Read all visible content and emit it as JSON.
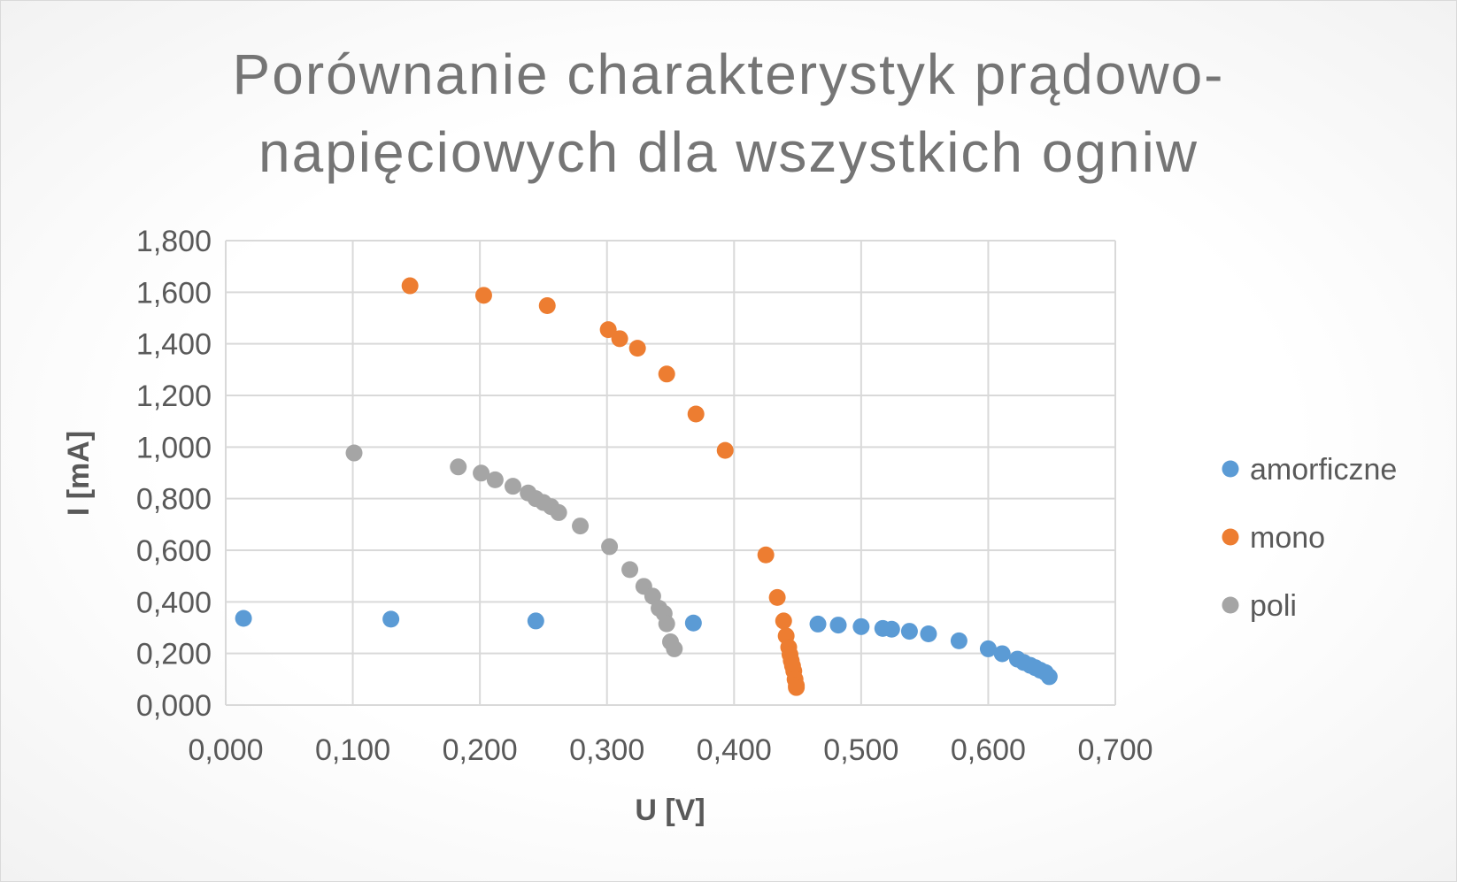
{
  "chart_data": {
    "type": "scatter",
    "title_lines": [
      "Porównanie charakterystyk prądowo-",
      "napięciowych dla wszystkich ogniw"
    ],
    "xlabel": "U [V]",
    "ylabel": "I [mA]",
    "xlim": [
      0,
      0.7
    ],
    "ylim": [
      0,
      1.8
    ],
    "x_ticks": [
      "0,000",
      "0,100",
      "0,200",
      "0,300",
      "0,400",
      "0,500",
      "0,600",
      "0,700"
    ],
    "y_ticks": [
      "0,000",
      "0,200",
      "0,400",
      "0,600",
      "0,800",
      "1,000",
      "1,200",
      "1,400",
      "1,600",
      "1,800"
    ],
    "grid": true,
    "legend_position": "right",
    "series": [
      {
        "name": "amorficzne",
        "color": "#5b9bd5",
        "points": [
          [
            0.014,
            0.336
          ],
          [
            0.13,
            0.333
          ],
          [
            0.244,
            0.326
          ],
          [
            0.368,
            0.318
          ],
          [
            0.466,
            0.314
          ],
          [
            0.482,
            0.31
          ],
          [
            0.5,
            0.304
          ],
          [
            0.517,
            0.297
          ],
          [
            0.524,
            0.294
          ],
          [
            0.538,
            0.286
          ],
          [
            0.553,
            0.276
          ],
          [
            0.577,
            0.249
          ],
          [
            0.6,
            0.218
          ],
          [
            0.611,
            0.199
          ],
          [
            0.623,
            0.178
          ],
          [
            0.628,
            0.165
          ],
          [
            0.633,
            0.154
          ],
          [
            0.637,
            0.145
          ],
          [
            0.641,
            0.135
          ],
          [
            0.645,
            0.126
          ],
          [
            0.648,
            0.11
          ]
        ]
      },
      {
        "name": "mono",
        "color": "#ed7d31",
        "points": [
          [
            0.145,
            1.625
          ],
          [
            0.203,
            1.588
          ],
          [
            0.253,
            1.548
          ],
          [
            0.301,
            1.455
          ],
          [
            0.31,
            1.42
          ],
          [
            0.324,
            1.383
          ],
          [
            0.347,
            1.283
          ],
          [
            0.37,
            1.128
          ],
          [
            0.393,
            0.987
          ],
          [
            0.425,
            0.582
          ],
          [
            0.434,
            0.417
          ],
          [
            0.439,
            0.326
          ],
          [
            0.441,
            0.268
          ],
          [
            0.443,
            0.224
          ],
          [
            0.444,
            0.196
          ],
          [
            0.445,
            0.172
          ],
          [
            0.446,
            0.152
          ],
          [
            0.447,
            0.132
          ],
          [
            0.448,
            0.1
          ],
          [
            0.449,
            0.076
          ],
          [
            0.449,
            0.068
          ]
        ]
      },
      {
        "name": "poli",
        "color": "#a5a5a5",
        "points": [
          [
            0.101,
            0.977
          ],
          [
            0.183,
            0.923
          ],
          [
            0.201,
            0.899
          ],
          [
            0.212,
            0.873
          ],
          [
            0.226,
            0.848
          ],
          [
            0.238,
            0.822
          ],
          [
            0.244,
            0.8
          ],
          [
            0.25,
            0.785
          ],
          [
            0.256,
            0.769
          ],
          [
            0.262,
            0.746
          ],
          [
            0.279,
            0.694
          ],
          [
            0.302,
            0.614
          ],
          [
            0.318,
            0.525
          ],
          [
            0.329,
            0.46
          ],
          [
            0.336,
            0.422
          ],
          [
            0.341,
            0.375
          ],
          [
            0.345,
            0.355
          ],
          [
            0.347,
            0.315
          ],
          [
            0.35,
            0.245
          ],
          [
            0.353,
            0.218
          ]
        ]
      }
    ]
  }
}
